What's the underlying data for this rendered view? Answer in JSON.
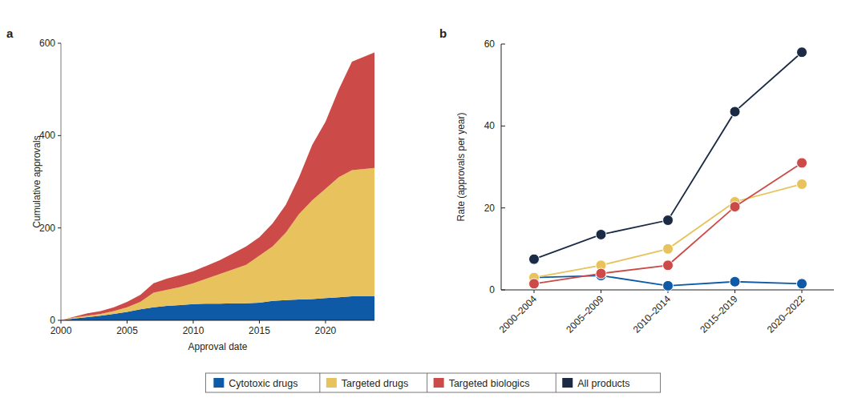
{
  "chart_data": [
    {
      "type": "area",
      "title": "a",
      "stacked": true,
      "x_label": "Approval date",
      "y_label": "Cumulative approvals",
      "x": [
        2000,
        2001,
        2002,
        2003,
        2004,
        2005,
        2006,
        2007,
        2008,
        2009,
        2010,
        2011,
        2012,
        2013,
        2014,
        2015,
        2016,
        2017,
        2018,
        2019,
        2020,
        2021,
        2022,
        2023.7
      ],
      "xlim": [
        2000,
        2023.7
      ],
      "xticks": [
        2000,
        2005,
        2010,
        2015,
        2020
      ],
      "ylim": [
        0,
        600
      ],
      "yticks": [
        0,
        200,
        400,
        600
      ],
      "series": [
        {
          "name": "Cytotoxic drugs",
          "color": "#0f5aa6",
          "values": [
            0,
            4,
            7,
            10,
            14,
            18,
            24,
            28,
            31,
            33,
            35,
            36,
            36,
            37,
            37,
            38,
            42,
            44,
            45,
            46,
            48,
            50,
            52,
            52
          ]
        },
        {
          "name": "Targeted drugs",
          "color": "#e8c25c",
          "values": [
            0,
            2,
            3,
            4,
            6,
            10,
            16,
            32,
            35,
            39,
            45,
            54,
            64,
            73,
            83,
            102,
            118,
            146,
            185,
            214,
            237,
            260,
            273,
            278
          ]
        },
        {
          "name": "Targeted biologics",
          "color": "#cc4a47",
          "values": [
            0,
            2,
            5,
            6,
            8,
            12,
            15,
            20,
            24,
            26,
            26,
            28,
            30,
            35,
            40,
            40,
            50,
            60,
            80,
            120,
            145,
            190,
            235,
            250
          ]
        }
      ]
    },
    {
      "type": "line",
      "title": "b",
      "marker": "circle",
      "legend": "bottom",
      "y_label": "Rate (approvals per year)",
      "categories": [
        "2000–2004",
        "2005–2009",
        "2010–2014",
        "2015–2019",
        "2020–2022"
      ],
      "ylim": [
        0,
        60
      ],
      "yticks": [
        0,
        20,
        40,
        60
      ],
      "series": [
        {
          "name": "Cytotoxic drugs",
          "color": "#0f5aa6",
          "values": [
            3,
            3.5,
            1,
            2,
            1.5
          ]
        },
        {
          "name": "Targeted drugs",
          "color": "#e8c25c",
          "values": [
            3,
            6,
            10,
            21.5,
            25.8
          ]
        },
        {
          "name": "Targeted biologics",
          "color": "#cc4a47",
          "values": [
            1.5,
            4,
            6,
            20.3,
            31
          ]
        },
        {
          "name": "All products",
          "color": "#1c2b45",
          "values": [
            7.5,
            13.5,
            17,
            43.5,
            58
          ]
        }
      ]
    }
  ]
}
